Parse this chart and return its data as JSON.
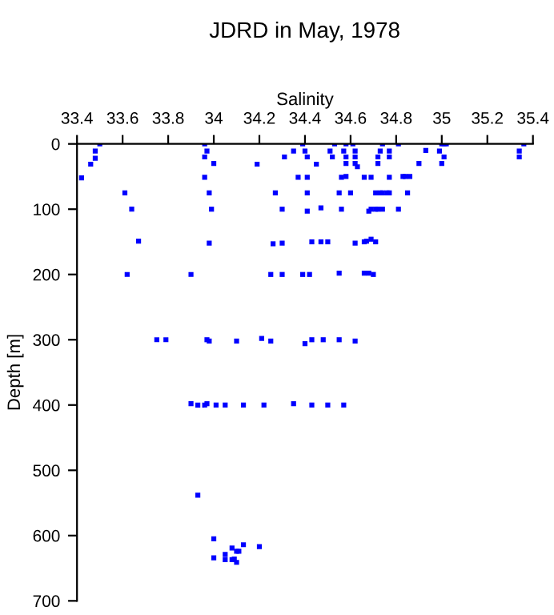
{
  "chart_data": {
    "type": "scatter",
    "title": "JDRD in May, 1978",
    "xlabel": "Salinity",
    "ylabel": "Depth [m]",
    "xlim": [
      33.4,
      35.4
    ],
    "xticks": [
      33.4,
      33.6,
      33.8,
      {
        "value": 34,
        "label": "34"
      },
      34.2,
      34.4,
      34.6,
      34.8,
      {
        "value": 35,
        "label": "35"
      },
      35.2,
      35.4
    ],
    "ylim": [
      700,
      0
    ],
    "yticks": [
      0,
      100,
      200,
      300,
      400,
      500,
      600,
      700
    ],
    "grid": false,
    "marker": "square",
    "series": [
      {
        "color": "#0000ff",
        "x": [
          33.42,
          33.46,
          33.48,
          33.48,
          33.5,
          33.61,
          33.64,
          33.67,
          33.96,
          33.97,
          33.96,
          34.0,
          33.96,
          33.98,
          33.99,
          33.98,
          34.19,
          34.27,
          34.3,
          34.26,
          34.3,
          34.31,
          34.35,
          34.37,
          34.39,
          34.4,
          34.41,
          34.41,
          34.41,
          34.41,
          34.43,
          34.45,
          34.47,
          34.47,
          34.5,
          34.51,
          34.52,
          34.53,
          34.55,
          34.56,
          34.56,
          34.57,
          34.58,
          34.58,
          34.58,
          34.58,
          34.6,
          34.61,
          34.62,
          34.62,
          34.62,
          34.63,
          34.62,
          34.66,
          34.66,
          34.67,
          34.69,
          34.71,
          34.68,
          34.69,
          34.71,
          34.72,
          34.74,
          34.69,
          34.71,
          34.73,
          34.74,
          34.76,
          34.77,
          34.72,
          34.72,
          34.73,
          34.74,
          34.77,
          34.77,
          34.77,
          34.81,
          34.81,
          34.83,
          34.84,
          34.86,
          34.85,
          34.9,
          34.93,
          34.99,
          35.0,
          35.01,
          35.0,
          35.01,
          35.02,
          35.34,
          35.34,
          35.36,
          33.62,
          33.9,
          34.25,
          34.3,
          34.39,
          34.42,
          34.55,
          34.66,
          34.68,
          34.7,
          33.75,
          33.79,
          33.97,
          33.98,
          34.1,
          34.21,
          34.25,
          34.4,
          34.43,
          34.48,
          34.55,
          34.62,
          33.9,
          33.93,
          33.96,
          33.97,
          34.01,
          34.05,
          34.13,
          34.22,
          34.35,
          34.43,
          34.5,
          34.57,
          33.93,
          34.0,
          34.0,
          34.05,
          34.05,
          34.08,
          34.08,
          34.09,
          34.1,
          34.11,
          34.1,
          34.13,
          34.2
        ],
        "values": [
          52,
          31,
          22,
          11,
          0,
          75,
          100,
          149,
          0,
          11,
          20,
          30,
          51,
          75,
          100,
          152,
          31,
          75,
          100,
          153,
          152,
          20,
          11,
          51,
          0,
          11,
          20,
          51,
          75,
          103,
          150,
          31,
          98,
          150,
          150,
          11,
          20,
          0,
          75,
          51,
          100,
          11,
          20,
          0,
          50,
          30,
          75,
          0,
          11,
          20,
          30,
          35,
          152,
          51,
          150,
          149,
          146,
          150,
          103,
          100,
          100,
          100,
          100,
          51,
          75,
          75,
          75,
          75,
          75,
          30,
          20,
          11,
          0,
          11,
          20,
          51,
          0,
          100,
          50,
          50,
          50,
          75,
          30,
          10,
          11,
          30,
          20,
          0,
          0,
          0,
          11,
          20,
          0,
          200,
          200,
          200,
          200,
          200,
          200,
          198,
          198,
          198,
          200,
          300,
          300,
          300,
          302,
          302,
          298,
          302,
          306,
          300,
          300,
          300,
          302,
          398,
          400,
          400,
          398,
          400,
          400,
          400,
          400,
          398,
          400,
          400,
          400,
          538,
          605,
          634,
          637,
          629,
          619,
          637,
          636,
          624,
          624,
          641,
          614,
          617
        ]
      }
    ]
  }
}
